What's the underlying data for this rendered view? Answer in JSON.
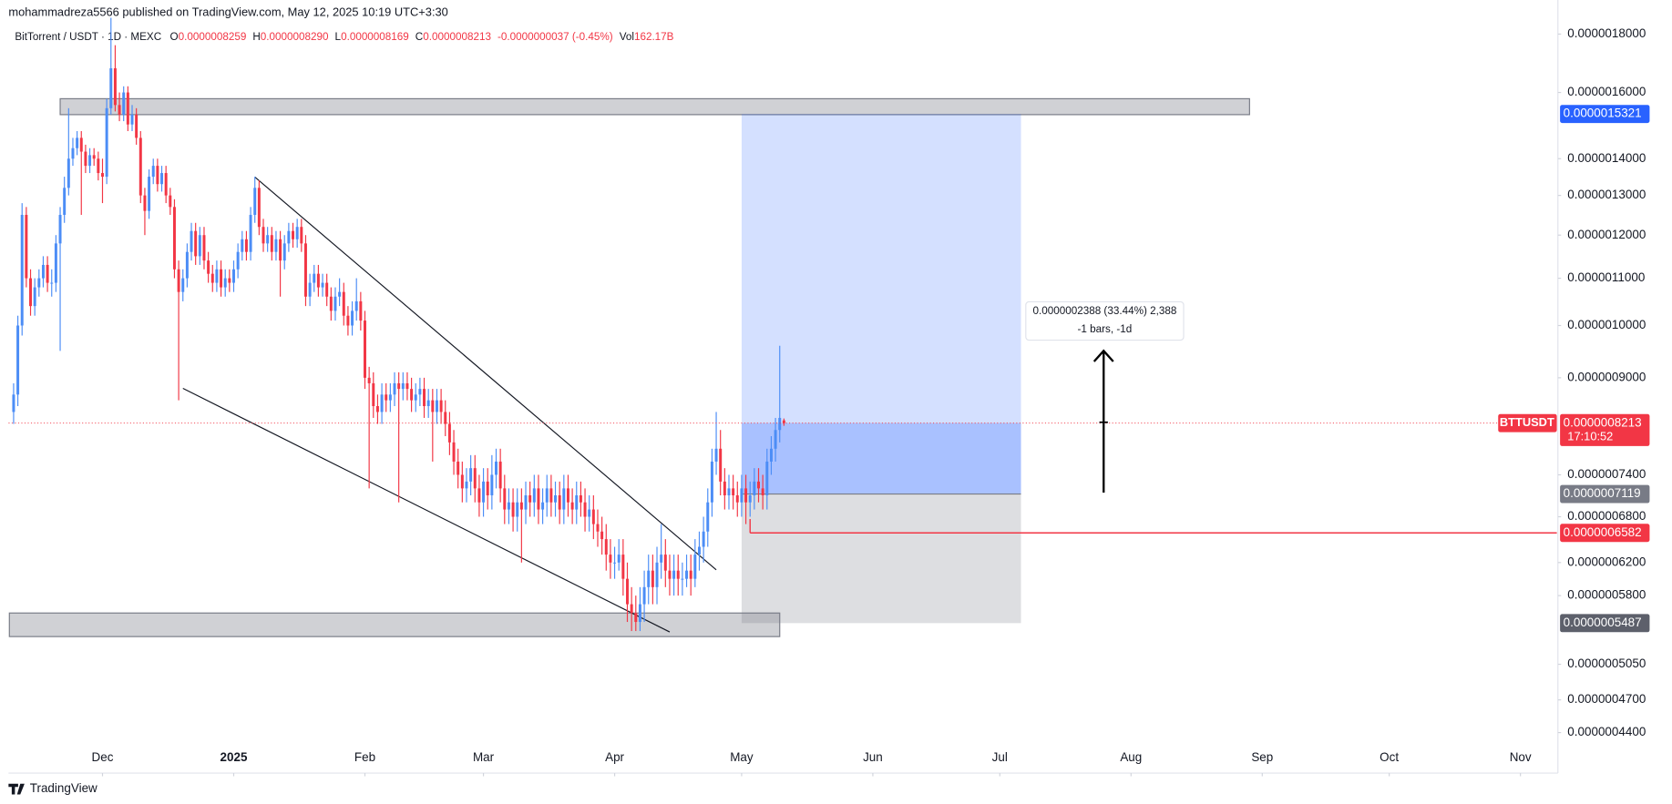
{
  "header": {
    "published": "mohammadreza5566 published on TradingView.com, May 12, 2025 10:19 UTC+3:30"
  },
  "chart_data": {
    "type": "candlestick",
    "symbol": "BitTorrent / USDT · 1D · MEXC",
    "ohlc_legend": [
      [
        "O",
        "0.0000008259"
      ],
      [
        "H",
        "0.0000008290"
      ],
      [
        "L",
        "0.0000008169"
      ],
      [
        "C",
        "0.0000008213"
      ]
    ],
    "change": "-0.0000000037 (-0.45%)",
    "volume_label": "Vol",
    "volume": "162.17B",
    "log_scale": true,
    "ylim": [
      4.055e-07,
      1.928e-06
    ],
    "yticks": [
      {
        "value": 1.8e-06,
        "label": "0.0000018000"
      },
      {
        "value": 1.6e-06,
        "label": "0.0000016000"
      },
      {
        "value": 1.4e-06,
        "label": "0.0000014000"
      },
      {
        "value": 1.3e-06,
        "label": "0.0000013000"
      },
      {
        "value": 1.2e-06,
        "label": "0.0000012000"
      },
      {
        "value": 1.1e-06,
        "label": "0.0000011000"
      },
      {
        "value": 1e-06,
        "label": "0.0000010000"
      },
      {
        "value": 9e-07,
        "label": "0.0000009000"
      },
      {
        "value": 7.4e-07,
        "label": "0.0000007400"
      },
      {
        "value": 6.8e-07,
        "label": "0.0000006800"
      },
      {
        "value": 6.2e-07,
        "label": "0.0000006200"
      },
      {
        "value": 5.8e-07,
        "label": "0.0000005800"
      },
      {
        "value": 5.05e-07,
        "label": "0.0000005050"
      },
      {
        "value": 4.7e-07,
        "label": "0.0000004700"
      },
      {
        "value": 4.4e-07,
        "label": "0.0000004400"
      }
    ],
    "xlim": [
      -1.2,
      364.6
    ],
    "xticks": [
      {
        "value": 21,
        "label": "Dec"
      },
      {
        "value": 52,
        "label": "2025"
      },
      {
        "value": 83,
        "label": "Feb"
      },
      {
        "value": 111,
        "label": "Mar"
      },
      {
        "value": 142,
        "label": "Apr"
      },
      {
        "value": 172,
        "label": "May"
      },
      {
        "value": 203,
        "label": "Jun"
      },
      {
        "value": 233,
        "label": "Jul"
      },
      {
        "value": 264,
        "label": "Aug"
      },
      {
        "value": 295,
        "label": "Sep"
      },
      {
        "value": 325,
        "label": "Oct"
      },
      {
        "value": 356,
        "label": "Nov"
      }
    ],
    "up_color": "#4c8df6",
    "down_color": "#f23645",
    "ohlc": [
      [
        8.4e-07,
        8.9e-07,
        8.2e-07,
        8.7e-07
      ],
      [
        8.7e-07,
        1.02e-06,
        8.5e-07,
        1e-06
      ],
      [
        1e-06,
        1.28e-06,
        9.8e-07,
        1.25e-06
      ],
      [
        1.25e-06,
        1.27e-06,
        1.08e-06,
        1.1e-06
      ],
      [
        1.1e-06,
        1.12e-06,
        1.02e-06,
        1.04e-06
      ],
      [
        1.04e-06,
        1.1e-06,
        1.02e-06,
        1.08e-06
      ],
      [
        1.08e-06,
        1.12e-06,
        1.06e-06,
        1.1e-06
      ],
      [
        1.1e-06,
        1.15e-06,
        1.08e-06,
        1.13e-06
      ],
      [
        1.13e-06,
        1.15e-06,
        1.07e-06,
        1.09e-06
      ],
      [
        1.09e-06,
        1.12e-06,
        1.06e-06,
        1.09e-06
      ],
      [
        1.09e-06,
        1.2e-06,
        1.07e-06,
        1.18e-06
      ],
      [
        1.18e-06,
        1.27e-06,
        9.5e-07,
        1.25e-06
      ],
      [
        1.25e-06,
        1.35e-06,
        1.23e-06,
        1.32e-06
      ],
      [
        1.32e-06,
        1.55e-06,
        1.3e-06,
        1.4e-06
      ],
      [
        1.4e-06,
        1.46e-06,
        1.38e-06,
        1.43e-06
      ],
      [
        1.43e-06,
        1.48e-06,
        1.41e-06,
        1.46e-06
      ],
      [
        1.46e-06,
        1.48e-06,
        1.25e-06,
        1.42e-06
      ],
      [
        1.42e-06,
        1.44e-06,
        1.36e-06,
        1.38e-06
      ],
      [
        1.38e-06,
        1.43e-06,
        1.36e-06,
        1.41e-06
      ],
      [
        1.41e-06,
        1.43e-06,
        1.38e-06,
        1.4e-06
      ],
      [
        1.4e-06,
        1.42e-06,
        1.34e-06,
        1.36e-06
      ],
      [
        1.36e-06,
        1.4e-06,
        1.28e-06,
        1.35e-06
      ],
      [
        1.35e-06,
        1.58e-06,
        1.33e-06,
        1.55e-06
      ],
      [
        1.55e-06,
        1.86e-06,
        1.53e-06,
        1.68e-06
      ],
      [
        1.68e-06,
        1.76e-06,
        1.54e-06,
        1.56e-06
      ],
      [
        1.56e-06,
        1.6e-06,
        1.51e-06,
        1.53e-06
      ],
      [
        1.53e-06,
        1.62e-06,
        1.51e-06,
        1.6e-06
      ],
      [
        1.6e-06,
        1.62e-06,
        1.48e-06,
        1.5e-06
      ],
      [
        1.5e-06,
        1.56e-06,
        1.48e-06,
        1.53e-06
      ],
      [
        1.53e-06,
        1.55e-06,
        1.44e-06,
        1.46e-06
      ],
      [
        1.46e-06,
        1.48e-06,
        1.28e-06,
        1.3e-06
      ],
      [
        1.3e-06,
        1.32e-06,
        1.2e-06,
        1.26e-06
      ],
      [
        1.26e-06,
        1.37e-06,
        1.24e-06,
        1.35e-06
      ],
      [
        1.35e-06,
        1.4e-06,
        1.33e-06,
        1.38e-06
      ],
      [
        1.38e-06,
        1.4e-06,
        1.31e-06,
        1.33e-06
      ],
      [
        1.33e-06,
        1.38e-06,
        1.31e-06,
        1.36e-06
      ],
      [
        1.36e-06,
        1.38e-06,
        1.28e-06,
        1.3e-06
      ],
      [
        1.3e-06,
        1.32e-06,
        1.25e-06,
        1.27e-06
      ],
      [
        1.27e-06,
        1.29e-06,
        1.1e-06,
        1.12e-06
      ],
      [
        1.12e-06,
        1.14e-06,
        8.6e-07,
        1.07e-06
      ],
      [
        1.07e-06,
        1.12e-06,
        1.05e-06,
        1.1e-06
      ],
      [
        1.1e-06,
        1.18e-06,
        1.08e-06,
        1.16e-06
      ],
      [
        1.16e-06,
        1.23e-06,
        1.14e-06,
        1.21e-06
      ],
      [
        1.21e-06,
        1.23e-06,
        1.13e-06,
        1.15e-06
      ],
      [
        1.15e-06,
        1.22e-06,
        1.13e-06,
        1.2e-06
      ],
      [
        1.2e-06,
        1.22e-06,
        1.12e-06,
        1.14e-06
      ],
      [
        1.14e-06,
        1.16e-06,
        1.09e-06,
        1.11e-06
      ],
      [
        1.11e-06,
        1.13e-06,
        1.07e-06,
        1.09e-06
      ],
      [
        1.09e-06,
        1.14e-06,
        1.07e-06,
        1.12e-06
      ],
      [
        1.12e-06,
        1.14e-06,
        1.06e-06,
        1.08e-06
      ],
      [
        1.08e-06,
        1.12e-06,
        1.06e-06,
        1.1e-06
      ],
      [
        1.1e-06,
        1.12e-06,
        1.07e-06,
        1.09e-06
      ],
      [
        1.09e-06,
        1.14e-06,
        1.07e-06,
        1.12e-06
      ],
      [
        1.12e-06,
        1.18e-06,
        1.1e-06,
        1.16e-06
      ],
      [
        1.16e-06,
        1.21e-06,
        1.14e-06,
        1.19e-06
      ],
      [
        1.19e-06,
        1.21e-06,
        1.14e-06,
        1.16e-06
      ],
      [
        1.16e-06,
        1.27e-06,
        1.14e-06,
        1.25e-06
      ],
      [
        1.25e-06,
        1.35e-06,
        1.23e-06,
        1.32e-06
      ],
      [
        1.32e-06,
        1.34e-06,
        1.2e-06,
        1.22e-06
      ],
      [
        1.22e-06,
        1.24e-06,
        1.16e-06,
        1.18e-06
      ],
      [
        1.18e-06,
        1.22e-06,
        1.16e-06,
        1.2e-06
      ],
      [
        1.2e-06,
        1.22e-06,
        1.14e-06,
        1.16e-06
      ],
      [
        1.16e-06,
        1.21e-06,
        1.14e-06,
        1.19e-06
      ],
      [
        1.19e-06,
        1.21e-06,
        1.06e-06,
        1.14e-06
      ],
      [
        1.14e-06,
        1.2e-06,
        1.12e-06,
        1.18e-06
      ],
      [
        1.18e-06,
        1.23e-06,
        1.16e-06,
        1.21e-06
      ],
      [
        1.21e-06,
        1.23e-06,
        1.17e-06,
        1.19e-06
      ],
      [
        1.19e-06,
        1.24e-06,
        1.17e-06,
        1.22e-06
      ],
      [
        1.22e-06,
        1.24e-06,
        1.16e-06,
        1.18e-06
      ],
      [
        1.18e-06,
        1.2e-06,
        1.04e-06,
        1.06e-06
      ],
      [
        1.06e-06,
        1.11e-06,
        1.04e-06,
        1.09e-06
      ],
      [
        1.09e-06,
        1.13e-06,
        1.07e-06,
        1.11e-06
      ],
      [
        1.11e-06,
        1.13e-06,
        1.06e-06,
        1.08e-06
      ],
      [
        1.08e-06,
        1.11e-06,
        1.06e-06,
        1.09e-06
      ],
      [
        1.09e-06,
        1.11e-06,
        1.04e-06,
        1.06e-06
      ],
      [
        1.06e-06,
        1.08e-06,
        1.01e-06,
        1.03e-06
      ],
      [
        1.03e-06,
        1.08e-06,
        1.01e-06,
        1.06e-06
      ],
      [
        1.06e-06,
        1.1e-06,
        1.04e-06,
        1.07e-06
      ],
      [
        1.07e-06,
        1.09e-06,
        1e-06,
        1.02e-06
      ],
      [
        1.02e-06,
        1.04e-06,
        9.8e-07,
        1e-06
      ],
      [
        1e-06,
        1.05e-06,
        9.8e-07,
        1.03e-06
      ],
      [
        1.03e-06,
        1.1e-06,
        1.01e-06,
        1.05e-06
      ],
      [
        1.05e-06,
        1.07e-06,
        9.9e-07,
        1.01e-06
      ],
      [
        1.01e-06,
        1.03e-06,
        8.8e-07,
        9e-07
      ],
      [
        9e-07,
        9.2e-07,
        7.2e-07,
        8.9e-07
      ],
      [
        8.9e-07,
        9.1e-07,
        8.3e-07,
        8.5e-07
      ],
      [
        8.5e-07,
        8.7e-07,
        8.2e-07,
        8.4e-07
      ],
      [
        8.4e-07,
        8.9e-07,
        8.2e-07,
        8.7e-07
      ],
      [
        8.7e-07,
        8.9e-07,
        8.4e-07,
        8.6e-07
      ],
      [
        8.6e-07,
        8.9e-07,
        8.4e-07,
        8.7e-07
      ],
      [
        8.7e-07,
        9.1e-07,
        8.5e-07,
        8.9e-07
      ],
      [
        8.9e-07,
        9.1e-07,
        7e-07,
        8.8e-07
      ],
      [
        8.8e-07,
        9.1e-07,
        8.6e-07,
        8.9e-07
      ],
      [
        8.9e-07,
        9.1e-07,
        8.6e-07,
        8.8e-07
      ],
      [
        8.8e-07,
        9e-07,
        8.4e-07,
        8.6e-07
      ],
      [
        8.6e-07,
        8.9e-07,
        8.4e-07,
        8.7e-07
      ],
      [
        8.7e-07,
        9e-07,
        8.5e-07,
        8.8e-07
      ],
      [
        8.8e-07,
        9e-07,
        8.3e-07,
        8.5e-07
      ],
      [
        8.5e-07,
        8.8e-07,
        8.3e-07,
        8.6e-07
      ],
      [
        8.6e-07,
        8.8e-07,
        7.6e-07,
        8.4e-07
      ],
      [
        8.4e-07,
        8.8e-07,
        8.2e-07,
        8.6e-07
      ],
      [
        8.6e-07,
        8.8e-07,
        8.2e-07,
        8.4e-07
      ],
      [
        8.4e-07,
        8.6e-07,
        8e-07,
        8.2e-07
      ],
      [
        8.2e-07,
        8.4e-07,
        7.7e-07,
        7.9e-07
      ],
      [
        7.9e-07,
        8.1e-07,
        7.4e-07,
        7.6e-07
      ],
      [
        7.6e-07,
        7.8e-07,
        7.2e-07,
        7.4e-07
      ],
      [
        7.4e-07,
        7.6e-07,
        7e-07,
        7.2e-07
      ],
      [
        7.2e-07,
        7.5e-07,
        7e-07,
        7.3e-07
      ],
      [
        7.3e-07,
        7.7e-07,
        7.1e-07,
        7.5e-07
      ],
      [
        7.5e-07,
        7.7e-07,
        7e-07,
        7.2e-07
      ],
      [
        7.2e-07,
        7.4e-07,
        6.8e-07,
        7e-07
      ],
      [
        7e-07,
        7.5e-07,
        6.8e-07,
        7.3e-07
      ],
      [
        7.3e-07,
        7.5e-07,
        6.9e-07,
        7.1e-07
      ],
      [
        7.1e-07,
        7.7e-07,
        6.9e-07,
        7.4e-07
      ],
      [
        7.4e-07,
        7.8e-07,
        7.2e-07,
        7.6e-07
      ],
      [
        7.6e-07,
        7.8e-07,
        7e-07,
        7.2e-07
      ],
      [
        7.2e-07,
        7.4e-07,
        6.7e-07,
        6.9e-07
      ],
      [
        6.9e-07,
        7.2e-07,
        6.7e-07,
        7e-07
      ],
      [
        7e-07,
        7.2e-07,
        6.6e-07,
        6.8e-07
      ],
      [
        6.8e-07,
        7.2e-07,
        6.6e-07,
        7e-07
      ],
      [
        7e-07,
        7.2e-07,
        6.2e-07,
        6.9e-07
      ],
      [
        6.9e-07,
        7.3e-07,
        6.7e-07,
        7.1e-07
      ],
      [
        7.1e-07,
        7.3e-07,
        6.8e-07,
        7e-07
      ],
      [
        7e-07,
        7.4e-07,
        6.8e-07,
        7.2e-07
      ],
      [
        7.2e-07,
        7.4e-07,
        6.7e-07,
        6.9e-07
      ],
      [
        6.9e-07,
        7.2e-07,
        6.7e-07,
        7e-07
      ],
      [
        7e-07,
        7.4e-07,
        6.8e-07,
        7.2e-07
      ],
      [
        7.2e-07,
        7.4e-07,
        6.8e-07,
        7e-07
      ],
      [
        7e-07,
        7.3e-07,
        6.8e-07,
        7.1e-07
      ],
      [
        7.1e-07,
        7.3e-07,
        6.7e-07,
        6.9e-07
      ],
      [
        6.9e-07,
        7.4e-07,
        6.7e-07,
        7.2e-07
      ],
      [
        7.2e-07,
        7.4e-07,
        6.8e-07,
        7e-07
      ],
      [
        7e-07,
        7.2e-07,
        6.7e-07,
        6.9e-07
      ],
      [
        6.9e-07,
        7.3e-07,
        6.7e-07,
        7.1e-07
      ],
      [
        7.1e-07,
        7.3e-07,
        6.8e-07,
        7e-07
      ],
      [
        7e-07,
        7.2e-07,
        6.6e-07,
        6.8e-07
      ],
      [
        6.8e-07,
        7.1e-07,
        6.6e-07,
        6.9e-07
      ],
      [
        6.9e-07,
        7.1e-07,
        6.5e-07,
        6.7e-07
      ],
      [
        6.7e-07,
        6.9e-07,
        6.4e-07,
        6.6e-07
      ],
      [
        6.6e-07,
        6.8e-07,
        6.3e-07,
        6.5e-07
      ],
      [
        6.5e-07,
        6.7e-07,
        6.1e-07,
        6.3e-07
      ],
      [
        6.3e-07,
        6.5e-07,
        6e-07,
        6.2e-07
      ],
      [
        6.2e-07,
        6.4e-07,
        6e-07,
        6.2e-07
      ],
      [
        6.2e-07,
        6.5e-07,
        6.1e-07,
        6.3e-07
      ],
      [
        6.3e-07,
        6.5e-07,
        5.8e-07,
        6e-07
      ],
      [
        6e-07,
        6.2e-07,
        5.5e-07,
        5.7e-07
      ],
      [
        5.7e-07,
        5.9e-07,
        5.4e-07,
        5.6e-07
      ],
      [
        5.6e-07,
        5.8e-07,
        5.4e-07,
        5.5e-07
      ],
      [
        5.5e-07,
        5.9e-07,
        5.4e-07,
        5.7e-07
      ],
      [
        5.7e-07,
        6.1e-07,
        5.5e-07,
        5.9e-07
      ],
      [
        5.9e-07,
        6.3e-07,
        5.7e-07,
        6.1e-07
      ],
      [
        6.1e-07,
        6.3e-07,
        5.7e-07,
        5.9e-07
      ],
      [
        5.9e-07,
        6.4e-07,
        5.7e-07,
        6.2e-07
      ],
      [
        6.2e-07,
        6.7e-07,
        6e-07,
        6.3e-07
      ],
      [
        6.3e-07,
        6.5e-07,
        5.9e-07,
        6.1e-07
      ],
      [
        6.1e-07,
        6.3e-07,
        5.8e-07,
        6e-07
      ],
      [
        6e-07,
        6.3e-07,
        5.8e-07,
        6.1e-07
      ],
      [
        6.1e-07,
        6.3e-07,
        5.8e-07,
        6e-07
      ],
      [
        6e-07,
        6.2e-07,
        5.8e-07,
        6e-07
      ],
      [
        6e-07,
        6.3e-07,
        5.9e-07,
        6.1e-07
      ],
      [
        6.1e-07,
        6.3e-07,
        5.8e-07,
        6e-07
      ],
      [
        6e-07,
        6.5e-07,
        5.9e-07,
        6.3e-07
      ],
      [
        6.3e-07,
        6.6e-07,
        6.1e-07,
        6.4e-07
      ],
      [
        6.4e-07,
        6.8e-07,
        6.2e-07,
        6.6e-07
      ],
      [
        6.6e-07,
        7.2e-07,
        6.4e-07,
        7e-07
      ],
      [
        7e-07,
        7.8e-07,
        6.8e-07,
        7.6e-07
      ],
      [
        7.6e-07,
        8.4e-07,
        7.4e-07,
        7.8e-07
      ],
      [
        7.8e-07,
        8.1e-07,
        7.1e-07,
        7.3e-07
      ],
      [
        7.3e-07,
        7.5e-07,
        6.9e-07,
        7.1e-07
      ],
      [
        7.1e-07,
        7.4e-07,
        6.9e-07,
        7.2e-07
      ],
      [
        7.2e-07,
        7.4e-07,
        6.9e-07,
        7.1e-07
      ],
      [
        7.1e-07,
        7.3e-07,
        6.8e-07,
        7e-07
      ],
      [
        7e-07,
        7.4e-07,
        6.8e-07,
        7.2e-07
      ],
      [
        7.2e-07,
        7.4e-07,
        6.7e-07,
        7e-07
      ],
      [
        7e-07,
        7.3e-07,
        6.8e-07,
        7.1e-07
      ],
      [
        7.1e-07,
        7.5e-07,
        6.9e-07,
        7.3e-07
      ],
      [
        7.3e-07,
        7.5e-07,
        7e-07,
        7.2e-07
      ],
      [
        7.2e-07,
        7.4e-07,
        6.9e-07,
        7.1e-07
      ],
      [
        7.1e-07,
        7.8e-07,
        6.9e-07,
        7.6e-07
      ],
      [
        7.6e-07,
        8e-07,
        7.4e-07,
        7.8e-07
      ],
      [
        7.8e-07,
        8.3e-07,
        7.6e-07,
        8.1e-07
      ],
      [
        8.1e-07,
        9.6e-07,
        7.9e-07,
        8.3e-07
      ],
      [
        8.259e-07,
        8.29e-07,
        8.169e-07,
        8.213e-07
      ]
    ],
    "zones": [
      {
        "x": [
          11,
          292
        ],
        "y": [
          1.53e-06,
          1.58e-06
        ]
      },
      {
        "x": [
          -1,
          181
        ],
        "y": [
          5.34e-07,
          5.6e-07
        ]
      }
    ],
    "trendlines": [
      {
        "x": [
          57,
          166
        ],
        "y": [
          1.349e-06,
          6.11e-07
        ]
      },
      {
        "x": [
          40,
          155
        ],
        "y": [
          8.81e-07,
          5.39e-07
        ]
      }
    ],
    "position": {
      "x": [
        172,
        238
      ],
      "entry": {
        "value": 7.119e-07,
        "label": "0.0000007119"
      },
      "target": {
        "value": 1.5321e-06,
        "label": "0.0000015321"
      },
      "stop": {
        "value": 5.487e-07,
        "label": "0.0000005487"
      }
    },
    "stop_line": {
      "x": 174,
      "value": 6.582e-07,
      "label": "0.0000006582"
    },
    "last_price": {
      "label": "0.0000008213",
      "symbol": "BTTUSDT",
      "countdown": "17:10:52"
    },
    "measure": {
      "lines": [
        "0.0000002388 (33.44%) 2,388",
        "-1 bars, -1d"
      ]
    }
  },
  "footer": {
    "brand": "TradingView"
  }
}
